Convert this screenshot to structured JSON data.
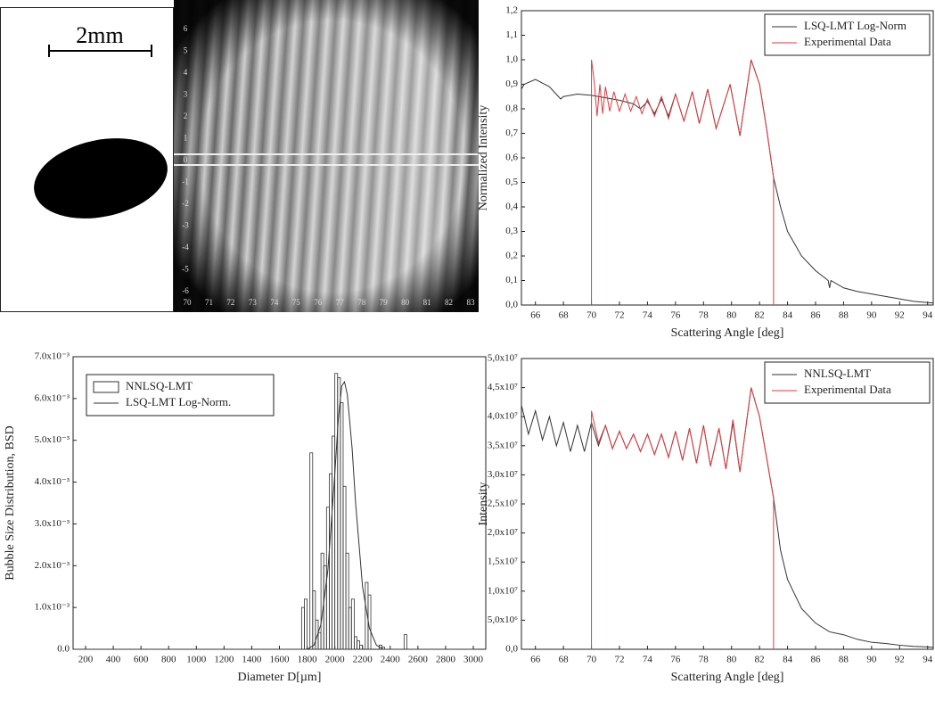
{
  "image_panel": {
    "scale_label": "2mm",
    "yticks": [
      6,
      5,
      4,
      3,
      2,
      1,
      0,
      -1,
      -2,
      -3,
      -4,
      -5,
      -6
    ],
    "xticks": [
      70,
      71,
      72,
      73,
      74,
      75,
      76,
      77,
      78,
      79,
      80,
      81,
      82,
      83
    ]
  },
  "chart_data": [
    {
      "type": "line",
      "x_label": "Scattering Angle [deg]",
      "y_label": "Normalized Intensity",
      "legend": "upper right",
      "xlim": [
        65,
        94.4
      ],
      "xticks": [
        66,
        68,
        70,
        72,
        74,
        76,
        78,
        80,
        82,
        84,
        86,
        88,
        90,
        92,
        94
      ],
      "ylim": [
        0,
        1.2
      ],
      "yticks": [
        {
          "value": 0,
          "label": "0,0"
        },
        {
          "value": 0.1,
          "label": "0,1"
        },
        {
          "value": 0.2,
          "label": "0,2"
        },
        {
          "value": 0.3,
          "label": "0,3"
        },
        {
          "value": 0.4,
          "label": "0,4"
        },
        {
          "value": 0.5,
          "label": "0,5"
        },
        {
          "value": 0.6,
          "label": "0,6"
        },
        {
          "value": 0.7,
          "label": "0,7"
        },
        {
          "value": 0.8,
          "label": "0,8"
        },
        {
          "value": 0.9,
          "label": "0,9"
        },
        {
          "value": 1.0,
          "label": "1,0"
        },
        {
          "value": 1.1,
          "label": "1,1"
        },
        {
          "value": 1.2,
          "label": "1,2"
        }
      ],
      "series": [
        {
          "name": "LSQ-LMT Log-Norm",
          "color": "#333333",
          "x": [
            65,
            65.2,
            66,
            67,
            67.8,
            68,
            69,
            70,
            71,
            72,
            73,
            73.5,
            74,
            74.5,
            75,
            75.5,
            76,
            76.6,
            77.2,
            77.7,
            78.3,
            78.9,
            79.9,
            80.6,
            81.4,
            82,
            82.5,
            83,
            83.5,
            84,
            85,
            86,
            86.9,
            87,
            87.1,
            88,
            89,
            90,
            91,
            92,
            93,
            94,
            94.4
          ],
          "values": [
            0.88,
            0.9,
            0.92,
            0.89,
            0.84,
            0.85,
            0.86,
            0.855,
            0.845,
            0.835,
            0.82,
            0.8,
            0.83,
            0.78,
            0.84,
            0.77,
            0.86,
            0.75,
            0.87,
            0.74,
            0.88,
            0.72,
            0.9,
            0.69,
            1.0,
            0.9,
            0.72,
            0.52,
            0.4,
            0.3,
            0.2,
            0.14,
            0.1,
            0.07,
            0.1,
            0.07,
            0.055,
            0.045,
            0.035,
            0.025,
            0.015,
            0.01,
            0.008
          ]
        },
        {
          "name": "Experimental Data",
          "color": "#e0393e",
          "x": [
            70,
            70,
            70.2,
            70.4,
            70.6,
            70.8,
            71,
            71.3,
            71.6,
            72,
            72.4,
            72.8,
            73.2,
            73.6,
            74,
            74.5,
            75,
            75.5,
            76,
            76.6,
            77.2,
            77.7,
            78.3,
            78.9,
            79.9,
            80.6,
            81.4,
            82,
            82.5,
            83,
            83
          ],
          "values": [
            0,
            1.0,
            0.91,
            0.77,
            0.9,
            0.78,
            0.89,
            0.79,
            0.87,
            0.79,
            0.86,
            0.79,
            0.85,
            0.78,
            0.84,
            0.77,
            0.85,
            0.76,
            0.86,
            0.75,
            0.87,
            0.74,
            0.88,
            0.72,
            0.9,
            0.69,
            1.0,
            0.9,
            0.72,
            0.52,
            0
          ]
        }
      ]
    },
    {
      "type": "histogram",
      "x_label": "Diameter D[µm]",
      "y_label": "Bubble Size Distribution, BSD",
      "legend": "upper left",
      "xlim": [
        110,
        3090
      ],
      "xticks": [
        200,
        400,
        600,
        800,
        1000,
        1200,
        1400,
        1600,
        1800,
        2000,
        2200,
        2400,
        2600,
        2800,
        3000
      ],
      "ylim": [
        0,
        0.007
      ],
      "yticks": [
        {
          "value": 0,
          "label": "0.0"
        },
        {
          "value": 0.001,
          "label": "1.0x10⁻³"
        },
        {
          "value": 0.002,
          "label": "2.0x10⁻³"
        },
        {
          "value": 0.003,
          "label": "3.0x10⁻³"
        },
        {
          "value": 0.004,
          "label": "4.0x10⁻³"
        },
        {
          "value": 0.005,
          "label": "5.0x10⁻³"
        },
        {
          "value": 0.006,
          "label": "6.0x10⁻³"
        },
        {
          "value": 0.007,
          "label": "7.0x10⁻³"
        }
      ],
      "bins": [
        1760,
        1780,
        1800,
        1820,
        1840,
        1860,
        1880,
        1900,
        1920,
        1940,
        1960,
        1980,
        2000,
        2020,
        2040,
        2060,
        2080,
        2100,
        2120,
        2140,
        2160,
        2180,
        2200,
        2220,
        2240,
        2260,
        2280,
        2300,
        2320,
        2340,
        2360,
        2380,
        2400,
        2420,
        2440,
        2460,
        2480,
        2500,
        2520
      ],
      "series": [
        {
          "name": "NNLSQ-LMT",
          "color": "#333333",
          "values": [
            0.001,
            0.0012,
            0,
            0.0047,
            0.0014,
            0.0007,
            0.0004,
            0.0023,
            0.002,
            0.0034,
            0.0042,
            0.0051,
            0.0066,
            0.0065,
            0.0059,
            0.0039,
            0.0023,
            0.001,
            0.0012,
            0.0003,
            0.0002,
            0.0001,
            0,
            0.0016,
            0.0013,
            0,
            0,
            0,
            0.0001,
            5e-05,
            0,
            0,
            0,
            0,
            0,
            0,
            0,
            0.00035
          ]
        },
        {
          "name": "LSQ-LMT Log-Norm.",
          "color": "#333333",
          "x": [
            110,
            1800,
            1850,
            1900,
            1950,
            2000,
            2025,
            2050,
            2070,
            2090,
            2125,
            2150,
            2200,
            2250,
            2300,
            2350,
            3000
          ],
          "values": [
            0,
            0,
            0.0001,
            0.0006,
            0.0019,
            0.0042,
            0.0055,
            0.0063,
            0.0064,
            0.0061,
            0.0048,
            0.0035,
            0.0015,
            0.0005,
            0.0001,
            0,
            0
          ]
        }
      ]
    },
    {
      "type": "line",
      "x_label": "Scattering Angle [deg]",
      "y_label": "Intensity",
      "legend": "upper right",
      "xlim": [
        65,
        94.4
      ],
      "xticks": [
        66,
        68,
        70,
        72,
        74,
        76,
        78,
        80,
        82,
        84,
        86,
        88,
        90,
        92,
        94
      ],
      "ylim": [
        0,
        50000000
      ],
      "yticks": [
        {
          "value": 0,
          "label": "0,0"
        },
        {
          "value": 5000000,
          "label": "5,0x10⁶"
        },
        {
          "value": 10000000,
          "label": "1,0x10⁷"
        },
        {
          "value": 15000000,
          "label": "1,5x10⁷"
        },
        {
          "value": 20000000,
          "label": "2,0x10⁷"
        },
        {
          "value": 25000000,
          "label": "2,5x10⁷"
        },
        {
          "value": 30000000,
          "label": "3,0x10⁷"
        },
        {
          "value": 35000000,
          "label": "3,5x10⁷"
        },
        {
          "value": 40000000,
          "label": "4,0x10⁷"
        },
        {
          "value": 45000000,
          "label": "4,5x10⁷"
        },
        {
          "value": 50000000,
          "label": "5,0x10⁷"
        }
      ],
      "series": [
        {
          "name": "NNLSQ-LMT",
          "color": "#333333",
          "x": [
            65,
            65.5,
            66,
            66.5,
            67,
            67.5,
            68,
            68.5,
            69,
            69.5,
            70,
            70.5,
            71,
            71.5,
            72,
            72.5,
            73,
            73.5,
            74,
            74.5,
            75,
            75.5,
            76,
            76.5,
            77,
            77.5,
            78,
            78.5,
            79.1,
            79.6,
            80.1,
            80.6,
            81.4,
            82,
            82.5,
            83,
            83.5,
            84,
            85,
            86,
            87,
            88,
            89,
            90,
            91,
            92,
            93,
            94,
            94.4
          ],
          "values": [
            42000000,
            37000000,
            41000000,
            36000000,
            40000000,
            35000000,
            39000000,
            34000000,
            38500000,
            34000000,
            39000000,
            35000000,
            38500000,
            34500000,
            37500000,
            34500000,
            37000000,
            34000000,
            37000000,
            33500000,
            37000000,
            33000000,
            37500000,
            32500000,
            38000000,
            32000000,
            38500000,
            31500000,
            38000000,
            31000000,
            39000000,
            30500000,
            45000000,
            40000000,
            33000000,
            26000000,
            17000000,
            12000000,
            7000000,
            4500000,
            3000000,
            2500000,
            1700000,
            1200000,
            1000000,
            700000,
            500000,
            400000,
            300000
          ]
        },
        {
          "name": "Experimental Data",
          "color": "#e0393e",
          "x": [
            70,
            70,
            70.5,
            71,
            71.5,
            72,
            72.5,
            73,
            73.5,
            74,
            74.5,
            75,
            75.5,
            76,
            76.5,
            77,
            77.5,
            78,
            78.5,
            79.1,
            79.6,
            80.1,
            80.6,
            81.4,
            82,
            82.5,
            83,
            83
          ],
          "values": [
            0,
            41000000,
            35500000,
            38500000,
            34500000,
            37500000,
            34500000,
            37000000,
            34000000,
            37000000,
            33500000,
            37000000,
            33000000,
            37500000,
            32500000,
            38000000,
            32000000,
            38500000,
            31500000,
            38000000,
            31000000,
            39500000,
            30500000,
            45000000,
            40000000,
            33000000,
            26000000,
            0
          ]
        }
      ]
    }
  ]
}
